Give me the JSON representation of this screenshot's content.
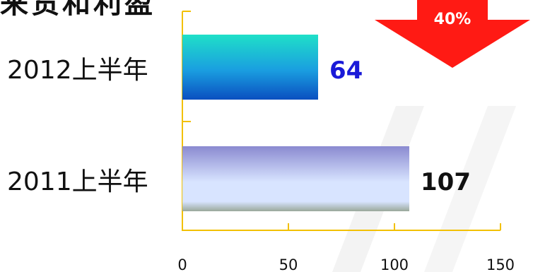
{
  "title_fragment": "来货和利盈",
  "badge": {
    "label": "40%",
    "color": "#ff1a14"
  },
  "colors": {
    "axis": "#f2c000",
    "bar_2012_top": "#1fe0c8",
    "bar_2012_bottom": "#0a4fc0",
    "bar_2011_top": "#8a8ad0",
    "bar_2011_mid": "#d8e4ff",
    "bar_2011_bottom": "#9aa89a",
    "label_2012": "#1a1ad8",
    "label_2011": "#111111"
  },
  "chart_data": {
    "type": "bar",
    "orientation": "horizontal",
    "categories": [
      "2012上半年",
      "2011上半年"
    ],
    "values": [
      64,
      107
    ],
    "value_labels": [
      "64",
      "107"
    ],
    "xlim": [
      0,
      150
    ],
    "xticks": [
      "0",
      "50",
      "100",
      "150"
    ],
    "grid": false,
    "title": "",
    "xlabel": "",
    "ylabel": ""
  }
}
